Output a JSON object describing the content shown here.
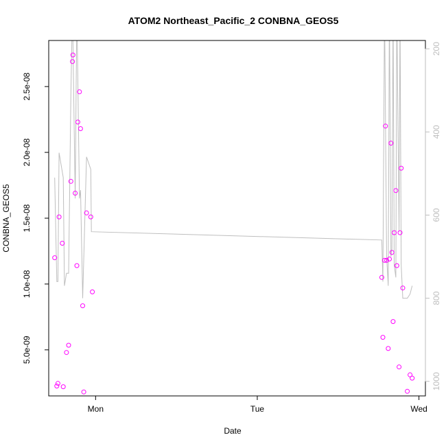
{
  "chart_data": {
    "type": "scatter",
    "title": "ATOM2 Northeast_Pacific_2 CONBNA_GEOS5",
    "xlabel": "Date",
    "ylabel": "CONBNA_GEOS5",
    "xlim_days": [
      -0.29,
      2.04
    ],
    "ylim": [
      1.5e-09,
      2.85e-08
    ],
    "y2lim": [
      1035,
      180
    ],
    "x_ticks": [
      {
        "value": 0,
        "label": "Mon"
      },
      {
        "value": 1,
        "label": "Tue"
      },
      {
        "value": 2,
        "label": "Wed"
      }
    ],
    "y_ticks": [
      {
        "value": 5e-09,
        "label": "5.0e-09"
      },
      {
        "value": 1e-08,
        "label": "1.0e-08"
      },
      {
        "value": 1.5e-08,
        "label": "1.5e-08"
      },
      {
        "value": 2e-08,
        "label": "2.0e-08"
      },
      {
        "value": 2.5e-08,
        "label": "2.5e-08"
      }
    ],
    "y2_ticks": [
      {
        "value": 200,
        "label": "200"
      },
      {
        "value": 400,
        "label": "400"
      },
      {
        "value": 600,
        "label": "600"
      },
      {
        "value": 800,
        "label": "800"
      },
      {
        "value": 1000,
        "label": "1000"
      }
    ],
    "grid": false,
    "series": [
      {
        "kind": "points",
        "color": "#ff00ff",
        "points": [
          [
            -0.253,
            1.2e-08
          ],
          [
            -0.24,
            2.25e-09
          ],
          [
            -0.233,
            2.45e-09
          ],
          [
            -0.226,
            1.51e-08
          ],
          [
            -0.206,
            1.31e-08
          ],
          [
            -0.2,
            2.2e-09
          ],
          [
            -0.18,
            4.8e-09
          ],
          [
            -0.167,
            5.35e-09
          ],
          [
            -0.153,
            1.78e-08
          ],
          [
            -0.143,
            2.69e-08
          ],
          [
            -0.14,
            2.74e-08
          ],
          [
            -0.126,
            1.69e-08
          ],
          [
            -0.116,
            1.14e-08
          ],
          [
            -0.11,
            2.23e-08
          ],
          [
            -0.1,
            2.46e-08
          ],
          [
            -0.093,
            2.18e-08
          ],
          [
            -0.08,
            8.35e-09
          ],
          [
            -0.073,
            1.8e-09
          ],
          [
            -0.056,
            1.54e-08
          ],
          [
            -0.03,
            1.51e-08
          ],
          [
            -0.02,
            9.4e-09
          ],
          [
            1.77,
            1.05e-08
          ],
          [
            1.777,
            5.95e-09
          ],
          [
            1.787,
            1.18e-08
          ],
          [
            1.793,
            2.2e-08
          ],
          [
            1.8,
            1.18e-08
          ],
          [
            1.81,
            5.1e-09
          ],
          [
            1.817,
            1.19e-08
          ],
          [
            1.827,
            2.07e-08
          ],
          [
            1.833,
            1.24e-08
          ],
          [
            1.84,
            7.15e-09
          ],
          [
            1.847,
            1.39e-08
          ],
          [
            1.857,
            1.71e-08
          ],
          [
            1.863,
            1.14e-08
          ],
          [
            1.877,
            3.7e-09
          ],
          [
            1.883,
            1.39e-08
          ],
          [
            1.89,
            1.88e-08
          ],
          [
            1.9,
            9.7e-09
          ],
          [
            1.915,
            1.25e-09
          ],
          [
            1.928,
            1.85e-09
          ],
          [
            1.945,
            3.1e-09
          ],
          [
            1.958,
            2.85e-09
          ]
        ]
      },
      {
        "kind": "line",
        "color": "#bebebe",
        "axis": "right",
        "points": [
          [
            -0.253,
            510
          ],
          [
            -0.24,
            760
          ],
          [
            -0.233,
            760
          ],
          [
            -0.226,
            450
          ],
          [
            -0.2,
            510
          ],
          [
            -0.193,
            770
          ],
          [
            -0.18,
            740
          ],
          [
            -0.167,
            740
          ],
          [
            -0.153,
            310
          ],
          [
            -0.143,
            100
          ],
          [
            -0.126,
            560
          ],
          [
            -0.116,
            100
          ],
          [
            -0.1,
            560
          ],
          [
            -0.093,
            540
          ],
          [
            -0.08,
            800
          ],
          [
            -0.056,
            460
          ],
          [
            -0.03,
            490
          ],
          [
            -0.026,
            640
          ],
          [
            1.77,
            660
          ],
          [
            1.777,
            760
          ],
          [
            1.787,
            100
          ],
          [
            1.8,
            700
          ],
          [
            1.81,
            770
          ],
          [
            1.817,
            100
          ],
          [
            1.827,
            700
          ],
          [
            1.833,
            680
          ],
          [
            1.84,
            100
          ],
          [
            1.847,
            720
          ],
          [
            1.857,
            750
          ],
          [
            1.863,
            100
          ],
          [
            1.877,
            640
          ],
          [
            1.883,
            100
          ],
          [
            1.89,
            720
          ],
          [
            1.9,
            800
          ],
          [
            1.915,
            800
          ],
          [
            1.928,
            800
          ],
          [
            1.945,
            790
          ],
          [
            1.958,
            770
          ]
        ]
      }
    ]
  }
}
